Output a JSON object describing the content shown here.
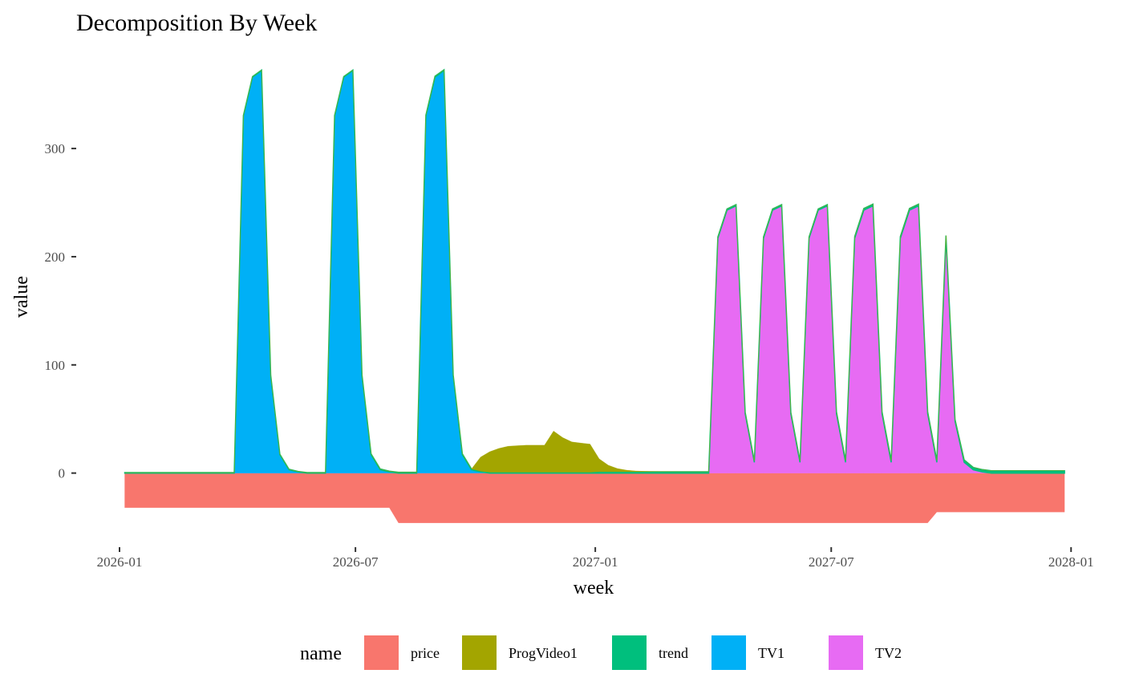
{
  "chart_data": {
    "type": "area",
    "stacked": true,
    "title": "Decomposition By Week",
    "xlabel": "week",
    "ylabel": "value",
    "x_ticks": [
      "2026-01",
      "2026-07",
      "2027-01",
      "2027-07",
      "2028-01"
    ],
    "y_ticks": [
      0,
      100,
      200,
      300
    ],
    "xlim": [
      "2025-11-30",
      "2028-01-31"
    ],
    "ylim": [
      -67,
      395
    ],
    "grid": false,
    "legend": {
      "title": "name",
      "position": "bottom"
    },
    "x": [
      "2026-01-05",
      "2026-01-12",
      "2026-01-19",
      "2026-01-26",
      "2026-02-02",
      "2026-02-09",
      "2026-02-16",
      "2026-02-23",
      "2026-03-02",
      "2026-03-09",
      "2026-03-16",
      "2026-03-23",
      "2026-03-30",
      "2026-04-06",
      "2026-04-13",
      "2026-04-20",
      "2026-04-27",
      "2026-05-04",
      "2026-05-11",
      "2026-05-18",
      "2026-05-25",
      "2026-06-01",
      "2026-06-08",
      "2026-06-15",
      "2026-06-22",
      "2026-06-29",
      "2026-07-06",
      "2026-07-13",
      "2026-07-20",
      "2026-07-27",
      "2026-08-03",
      "2026-08-10",
      "2026-08-17",
      "2026-08-24",
      "2026-08-31",
      "2026-09-07",
      "2026-09-14",
      "2026-09-21",
      "2026-09-28",
      "2026-10-05",
      "2026-10-12",
      "2026-10-19",
      "2026-10-26",
      "2026-11-02",
      "2026-11-09",
      "2026-11-16",
      "2026-11-23",
      "2026-11-30",
      "2026-12-07",
      "2026-12-14",
      "2026-12-21",
      "2026-12-28",
      "2027-01-04",
      "2027-01-11",
      "2027-01-18",
      "2027-01-25",
      "2027-02-01",
      "2027-02-08",
      "2027-02-15",
      "2027-02-22",
      "2027-03-01",
      "2027-03-08",
      "2027-03-15",
      "2027-03-22",
      "2027-03-29",
      "2027-04-05",
      "2027-04-12",
      "2027-04-19",
      "2027-04-26",
      "2027-05-03",
      "2027-05-10",
      "2027-05-17",
      "2027-05-24",
      "2027-05-31",
      "2027-06-07",
      "2027-06-14",
      "2027-06-21",
      "2027-06-28",
      "2027-07-05",
      "2027-07-12",
      "2027-07-19",
      "2027-07-26",
      "2027-08-02",
      "2027-08-09",
      "2027-08-16",
      "2027-08-23",
      "2027-08-30",
      "2027-09-06",
      "2027-09-13",
      "2027-09-20",
      "2027-09-27",
      "2027-10-04",
      "2027-10-11",
      "2027-10-18",
      "2027-10-25",
      "2027-11-01",
      "2027-11-08",
      "2027-11-15",
      "2027-11-22",
      "2027-11-29",
      "2027-12-06",
      "2027-12-13",
      "2027-12-20",
      "2027-12-27"
    ],
    "series": [
      {
        "name": "price",
        "color": "#F8766D",
        "values": [
          -32,
          -32,
          -32,
          -32,
          -32,
          -32,
          -32,
          -32,
          -32,
          -32,
          -32,
          -32,
          -32,
          -32,
          -32,
          -32,
          -32,
          -32,
          -32,
          -32,
          -32,
          -32,
          -32,
          -32,
          -32,
          -32,
          -32,
          -32,
          -32,
          -32,
          -46,
          -46,
          -46,
          -46,
          -46,
          -46,
          -46,
          -46,
          -46,
          -46,
          -46,
          -46,
          -46,
          -46,
          -46,
          -46,
          -46,
          -46,
          -46,
          -46,
          -46,
          -46,
          -46,
          -46,
          -46,
          -46,
          -46,
          -46,
          -46,
          -46,
          -46,
          -46,
          -46,
          -46,
          -46,
          -46,
          -46,
          -46,
          -46,
          -46,
          -46,
          -46,
          -46,
          -46,
          -46,
          -46,
          -46,
          -46,
          -46,
          -46,
          -46,
          -46,
          -46,
          -46,
          -46,
          -46,
          -46,
          -46,
          -46,
          -36,
          -36,
          -36,
          -36,
          -36,
          -36,
          -36,
          -36,
          -36,
          -36,
          -36,
          -36,
          -36,
          -36,
          -36
        ]
      },
      {
        "name": "ProgVideo1",
        "color": "#A3A500",
        "values": [
          0,
          0,
          0,
          0,
          0,
          0,
          0,
          0,
          0,
          0,
          0,
          0,
          0,
          0,
          0,
          0,
          0,
          0,
          0,
          0,
          0,
          0,
          0,
          0,
          0,
          0,
          0,
          0,
          0,
          0,
          0,
          0,
          0,
          0,
          0,
          0,
          0,
          0,
          0,
          13,
          19,
          22,
          24,
          24.5,
          25,
          25,
          25,
          38,
          32,
          28,
          27,
          26,
          12,
          6,
          3,
          1.5,
          0.8,
          0.5,
          0.3,
          0.2,
          0.1,
          0,
          0,
          0,
          0,
          0,
          0,
          0,
          0,
          0,
          0,
          0,
          0,
          0,
          0,
          0,
          0,
          0,
          0,
          0,
          0,
          0,
          0,
          0,
          0,
          0,
          0,
          0,
          0,
          0,
          0,
          0,
          0,
          0,
          0,
          0,
          0,
          0,
          0,
          0,
          0,
          0,
          0,
          0
        ]
      },
      {
        "name": "trend",
        "color": "#00BF7D",
        "values": [
          0.5,
          0.5,
          0.5,
          0.5,
          0.5,
          0.5,
          0.5,
          0.5,
          0.5,
          0.5,
          0.5,
          0.5,
          0.5,
          0.5,
          0.5,
          0.5,
          0.5,
          0.5,
          0.5,
          0.5,
          0.5,
          0.5,
          0.5,
          0.5,
          0.5,
          0.5,
          0.8,
          0.8,
          0.8,
          0.8,
          0.8,
          0.8,
          0.8,
          0.8,
          0.8,
          0.8,
          0.8,
          0.8,
          0.8,
          0.8,
          0.8,
          0.8,
          0.8,
          0.8,
          0.8,
          0.8,
          0.8,
          0.8,
          0.8,
          0.8,
          0.8,
          0.8,
          1.2,
          1.2,
          1.2,
          1.2,
          1.2,
          1.2,
          1.2,
          1.2,
          1.2,
          1.2,
          1.2,
          1.2,
          1.2,
          1.2,
          1.2,
          1.2,
          1.2,
          1.2,
          1.2,
          1.2,
          1.2,
          1.2,
          1.2,
          1.2,
          1.2,
          1.2,
          1.6,
          1.6,
          1.6,
          1.6,
          1.6,
          1.6,
          1.6,
          1.6,
          1.6,
          1.6,
          1.6,
          1.6,
          1.6,
          1.6,
          2.2,
          2.2,
          2.2,
          2.2,
          2.2,
          2.2,
          2.2,
          2.2,
          2.2,
          2.2,
          2.2,
          2.2
        ]
      },
      {
        "name": "TV1",
        "color": "#00B0F6",
        "values": [
          0,
          0,
          0,
          0,
          0,
          0,
          0,
          0,
          0,
          0,
          0,
          0,
          0,
          330,
          366,
          372,
          90,
          17,
          3,
          1,
          0,
          0,
          0,
          330,
          366,
          372,
          90,
          17,
          3,
          1,
          0,
          0,
          0,
          330,
          366,
          372,
          90,
          17,
          3,
          1,
          0,
          0,
          0,
          0,
          0,
          0,
          0,
          0,
          0,
          0,
          0,
          0,
          0,
          0,
          0,
          0,
          0,
          0,
          0,
          0,
          0,
          0,
          0,
          0,
          0,
          0,
          0,
          0,
          0,
          0,
          0,
          0,
          0,
          0,
          0,
          0,
          0,
          0,
          0,
          0,
          0,
          0,
          0,
          0,
          0,
          0,
          0,
          0,
          0,
          0,
          0,
          0,
          0,
          0,
          0,
          0,
          0,
          0,
          0,
          0,
          0,
          0,
          0,
          0
        ]
      },
      {
        "name": "TV2",
        "color": "#E76BF3",
        "values": [
          0,
          0,
          0,
          0,
          0,
          0,
          0,
          0,
          0,
          0,
          0,
          0,
          0,
          0,
          0,
          0,
          0,
          0,
          0,
          0,
          0,
          0,
          0,
          0,
          0,
          0,
          0,
          0,
          0,
          0,
          0,
          0,
          0,
          0,
          0,
          0,
          0,
          0,
          0,
          0,
          0,
          0,
          0,
          0,
          0,
          0,
          0,
          0,
          0,
          0,
          0,
          0,
          0,
          0,
          0,
          0,
          0,
          0,
          0,
          0,
          0,
          0,
          0,
          0,
          0,
          217,
          243,
          247,
          55,
          10,
          217,
          243,
          247,
          55,
          10,
          217,
          243,
          247,
          55,
          10,
          217,
          243,
          247,
          55,
          10,
          217,
          243,
          247,
          55,
          10,
          218,
          48,
          10,
          3,
          1,
          0,
          0,
          0,
          0,
          0,
          0,
          0,
          0,
          0
        ]
      }
    ]
  }
}
